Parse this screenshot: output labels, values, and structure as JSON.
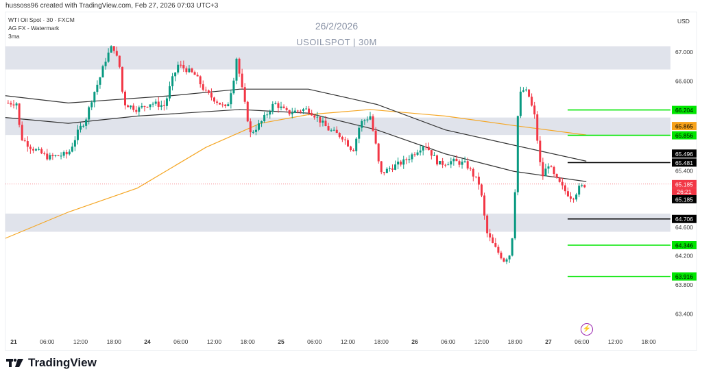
{
  "header": {
    "attribution": "hussoss96 created with TradingView.com, Feb 27, 2026 07:03 UTC+3"
  },
  "legend": {
    "symbol": "WTI Oil Spot · 30 · FXCM",
    "indicator1": "AG FX - Watermark",
    "indicator2": "3ma"
  },
  "watermark": {
    "date": "26/2/2026",
    "symbol": "USOILSPOT | 30M"
  },
  "currency": "USD",
  "brand": "TradingView",
  "colors": {
    "up": "#089981",
    "down": "#f23645",
    "ma_orange": "#f5a623",
    "ma_black": "#333333",
    "zone": "#e0e3eb",
    "level_green": "#00e600",
    "level_black": "#000000"
  },
  "chart_data": {
    "type": "candlestick",
    "title": "USOILSPOT 30M",
    "ylim": [
      63.2,
      67.3
    ],
    "y_ticks": [
      "67.000",
      "66.600",
      "65.400",
      "64.600",
      "64.200",
      "63.800",
      "63.400"
    ],
    "x_ticks": [
      {
        "t": 0,
        "label": "21",
        "bold": true
      },
      {
        "t": 6,
        "label": "06:00"
      },
      {
        "t": 12,
        "label": "12:00"
      },
      {
        "t": 18,
        "label": "18:00"
      },
      {
        "t": 24,
        "label": "24",
        "bold": true
      },
      {
        "t": 30,
        "label": "06:00"
      },
      {
        "t": 36,
        "label": "12:00"
      },
      {
        "t": 42,
        "label": "18:00"
      },
      {
        "t": 48,
        "label": "25",
        "bold": true
      },
      {
        "t": 54,
        "label": "06:00"
      },
      {
        "t": 60,
        "label": "12:00"
      },
      {
        "t": 66,
        "label": "18:00"
      },
      {
        "t": 72,
        "label": "26",
        "bold": true
      },
      {
        "t": 78,
        "label": "06:00"
      },
      {
        "t": 84,
        "label": "12:00"
      },
      {
        "t": 90,
        "label": "18:00"
      },
      {
        "t": 96,
        "label": "27",
        "bold": true
      },
      {
        "t": 102,
        "label": "06:00"
      },
      {
        "t": 108,
        "label": "12:00"
      },
      {
        "t": 114,
        "label": "18:00"
      }
    ],
    "price_path": [
      [
        -1.2,
        66.3
      ],
      [
        0.6,
        66.3
      ],
      [
        1.2,
        65.83
      ],
      [
        3.1,
        65.69
      ],
      [
        6.2,
        65.55
      ],
      [
        9.8,
        65.6
      ],
      [
        11.7,
        65.93
      ],
      [
        12.9,
        66.07
      ],
      [
        14.2,
        66.4
      ],
      [
        15.4,
        66.63
      ],
      [
        16.6,
        66.92
      ],
      [
        17.8,
        67.1
      ],
      [
        19.1,
        66.77
      ],
      [
        19.7,
        66.3
      ],
      [
        22.2,
        66.21
      ],
      [
        24.6,
        66.3
      ],
      [
        27.1,
        66.26
      ],
      [
        28.3,
        66.59
      ],
      [
        29.5,
        66.82
      ],
      [
        30.8,
        66.77
      ],
      [
        32.6,
        66.68
      ],
      [
        34.5,
        66.44
      ],
      [
        36.9,
        66.3
      ],
      [
        38.2,
        66.21
      ],
      [
        39.4,
        66.59
      ],
      [
        40,
        66.92
      ],
      [
        41.2,
        66.4
      ],
      [
        42.5,
        65.88
      ],
      [
        44.3,
        66.02
      ],
      [
        46.8,
        66.3
      ],
      [
        49.2,
        66.16
      ],
      [
        51.7,
        66.21
      ],
      [
        52.9,
        66.21
      ],
      [
        54.2,
        66.12
      ],
      [
        56.6,
        65.93
      ],
      [
        59.1,
        65.83
      ],
      [
        60.9,
        65.64
      ],
      [
        62.2,
        66.02
      ],
      [
        64,
        66.12
      ],
      [
        65.2,
        65.64
      ],
      [
        65.8,
        65.32
      ],
      [
        67.7,
        65.41
      ],
      [
        70.2,
        65.5
      ],
      [
        73.8,
        65.74
      ],
      [
        76.3,
        65.46
      ],
      [
        78.8,
        65.5
      ],
      [
        81.2,
        65.46
      ],
      [
        83.7,
        65.17
      ],
      [
        84.9,
        64.52
      ],
      [
        86.2,
        64.33
      ],
      [
        88,
        64.14
      ],
      [
        89.2,
        64.23
      ],
      [
        89.8,
        64.7
      ],
      [
        90.5,
        66.12
      ],
      [
        91.1,
        66.49
      ],
      [
        92.3,
        66.44
      ],
      [
        93.5,
        66.12
      ],
      [
        94.8,
        65.27
      ],
      [
        96,
        65.46
      ],
      [
        97.2,
        65.27
      ],
      [
        99.1,
        65.08
      ],
      [
        100.3,
        64.99
      ],
      [
        101.5,
        65.13
      ],
      [
        102.8,
        65.185
      ]
    ],
    "moving_averages": [
      {
        "name": "MA orange",
        "color": "#f5a623",
        "points": [
          [
            -1.5,
            64.44
          ],
          [
            9.8,
            64.8
          ],
          [
            22.2,
            65.13
          ],
          [
            34.5,
            65.69
          ],
          [
            44.3,
            66.02
          ],
          [
            52.9,
            66.14
          ],
          [
            64,
            66.21
          ],
          [
            77.5,
            66.12
          ],
          [
            89.8,
            65.99
          ],
          [
            102.8,
            65.86
          ]
        ]
      },
      {
        "name": "MA upper",
        "color": "#333333",
        "points": [
          [
            -1.5,
            66.4
          ],
          [
            9.8,
            66.3
          ],
          [
            28.3,
            66.4
          ],
          [
            40.6,
            66.49
          ],
          [
            52.9,
            66.49
          ],
          [
            65.2,
            66.28
          ],
          [
            77.5,
            65.93
          ],
          [
            89.8,
            65.72
          ],
          [
            102.8,
            65.5
          ]
        ]
      },
      {
        "name": "MA lower",
        "color": "#333333",
        "points": [
          [
            -1.5,
            66.1
          ],
          [
            9.8,
            66.02
          ],
          [
            22.2,
            66.12
          ],
          [
            40.6,
            66.21
          ],
          [
            52.9,
            66.16
          ],
          [
            65.2,
            65.93
          ],
          [
            77.5,
            65.6
          ],
          [
            89.8,
            65.36
          ],
          [
            102.8,
            65.22
          ]
        ]
      }
    ],
    "zones": [
      [
        66.76,
        67.08
      ],
      [
        65.86,
        66.1
      ],
      [
        64.53,
        64.78
      ]
    ],
    "levels": [
      {
        "price": 66.204,
        "label": "66.204",
        "color": "#00e600"
      },
      {
        "price": 65.856,
        "label": "65.856",
        "color": "#00e600"
      },
      {
        "price": 65.481,
        "label": "65.481",
        "color": "#000000"
      },
      {
        "price": 64.706,
        "label": "64.706",
        "color": "#000000"
      },
      {
        "price": 64.346,
        "label": "64.346",
        "color": "#00e600"
      },
      {
        "price": 63.916,
        "label": "63.916",
        "color": "#00e600"
      }
    ],
    "price_tags": [
      {
        "price": 65.865,
        "label": "65.865",
        "bg": "#f7a21b",
        "fg": "#000"
      },
      {
        "price": 65.496,
        "label": "65.496",
        "bg": "#000",
        "fg": "#fff"
      },
      {
        "price": 65.185,
        "label": "65.185",
        "bg": "#f23645",
        "fg": "#fff"
      }
    ],
    "last_price": {
      "price": 65.185,
      "label": "65.185",
      "countdown": "26:21",
      "prev_label": "65.185"
    }
  }
}
